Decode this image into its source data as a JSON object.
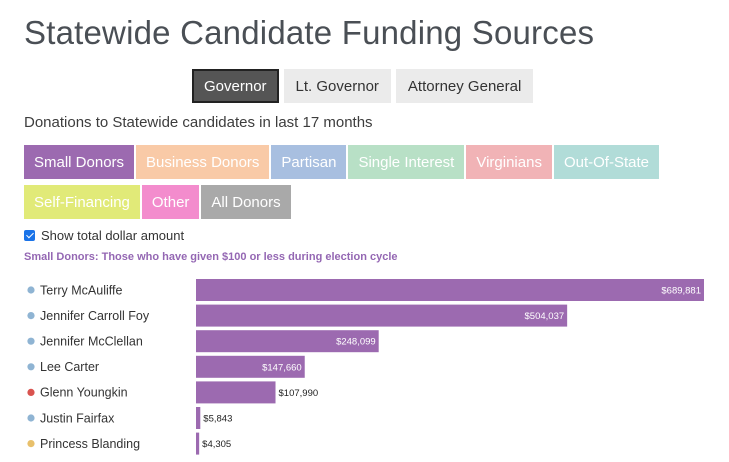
{
  "title": "Statewide Candidate Funding Sources",
  "office_tabs": [
    {
      "label": "Governor",
      "active": true
    },
    {
      "label": "Lt. Governor",
      "active": false
    },
    {
      "label": "Attorney General",
      "active": false
    }
  ],
  "subtitle": "Donations to Statewide candidates in last 17 months",
  "donor_tabs": [
    {
      "label": "Small Donors",
      "color": "#9c6ab0"
    },
    {
      "label": "Business Donors",
      "color": "#f9caa7"
    },
    {
      "label": "Partisan",
      "color": "#a8bfe0"
    },
    {
      "label": "Single Interest",
      "color": "#b8e0c6"
    },
    {
      "label": "Virginians",
      "color": "#f1b3b6"
    },
    {
      "label": "Out-Of-State",
      "color": "#b1dcd8"
    },
    {
      "label": "Self-Financing",
      "color": "#e1ea78"
    },
    {
      "label": "Other",
      "color": "#f38ccd"
    },
    {
      "label": "All Donors",
      "color": "#a9a9a9"
    }
  ],
  "checkbox": {
    "label": "Show total dollar amount",
    "checked": true
  },
  "description": "Small Donors: Those who have given $100 or less during election cycle",
  "colors": {
    "bar": "#9c6ab0",
    "dem": "#8fb4d3",
    "rep": "#d9534f",
    "ind": "#e8c06b"
  },
  "chart_data": {
    "type": "bar",
    "orientation": "horizontal",
    "categories": [
      "Terry McAuliffe",
      "Jennifer Carroll Foy",
      "Jennifer McClellan",
      "Lee Carter",
      "Glenn Youngkin",
      "Justin Fairfax",
      "Princess Blanding"
    ],
    "values": [
      689881,
      504037,
      248099,
      147660,
      107990,
      5843,
      4305
    ],
    "value_labels": [
      "$689,881",
      "$504,037",
      "$248,099",
      "$147,660",
      "$107,990",
      "$5,843",
      "$4,305"
    ],
    "party_dots": [
      "dem",
      "dem",
      "dem",
      "dem",
      "rep",
      "dem",
      "ind"
    ],
    "title": "",
    "xlabel": "",
    "ylabel": "",
    "xlim": [
      0,
      689881
    ]
  }
}
